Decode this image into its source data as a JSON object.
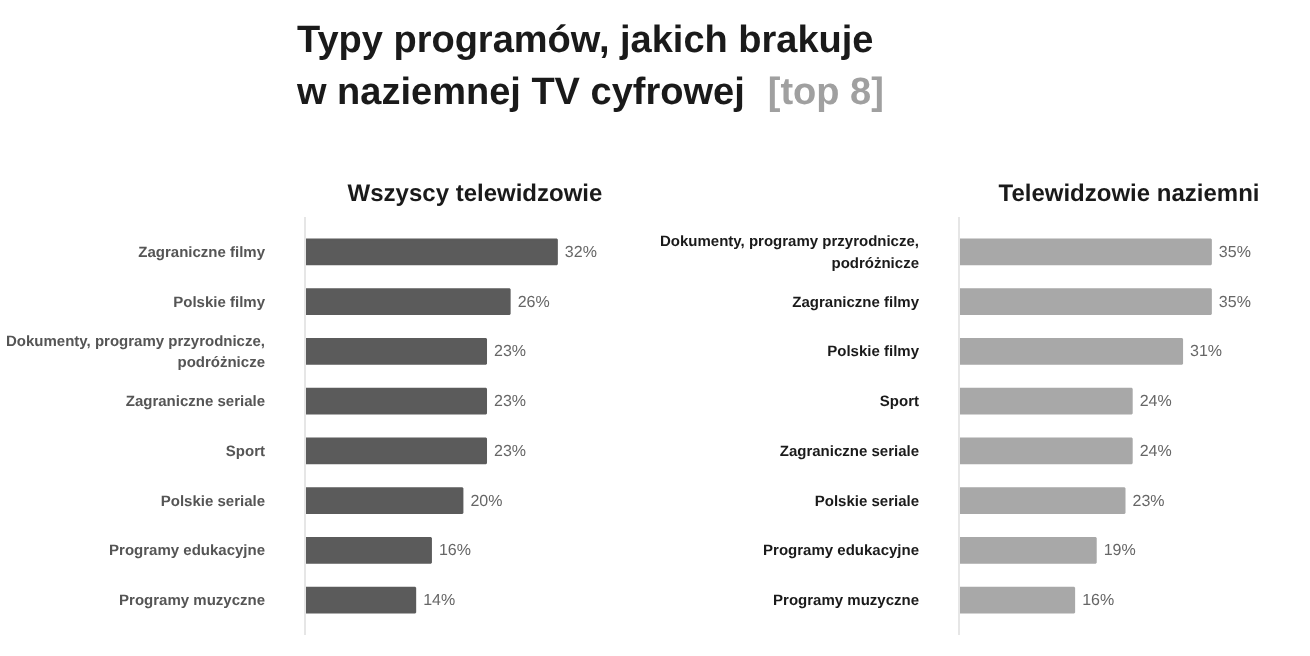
{
  "chart_data": [
    {
      "type": "other",
      "title": "Typy programów, jakich brakuje w naziemnej TV cyfrowej",
      "subtitle": "[top 8]"
    },
    {
      "type": "bar",
      "orientation": "horizontal",
      "title": "Wszyscy telewidzowie",
      "categories": [
        "Zagraniczne filmy",
        "Polskie filmy",
        "Dokumenty, programy przyrodnicze, podróżnicze",
        "Zagraniczne seriale",
        "Sport",
        "Polskie seriale",
        "Programy edukacyjne",
        "Programy muzyczne"
      ],
      "values": [
        32,
        26,
        23,
        23,
        23,
        20,
        16,
        14
      ],
      "value_labels": [
        "32%",
        "26%",
        "23%",
        "23%",
        "23%",
        "20%",
        "16%",
        "14%"
      ],
      "color": "#5b5b5b",
      "grid": false,
      "tick_labels": "y"
    },
    {
      "type": "bar",
      "orientation": "horizontal",
      "title": "Telewidzowie naziemni",
      "categories": [
        "Dokumenty, programy przyrodnicze, podróżnicze",
        "Zagraniczne filmy",
        "Polskie filmy",
        "Sport",
        "Zagraniczne seriale",
        "Polskie seriale",
        "Programy edukacyjne",
        "Programy muzyczne"
      ],
      "values": [
        35,
        35,
        31,
        24,
        24,
        23,
        19,
        16
      ],
      "value_labels": [
        "35%",
        "35%",
        "31%",
        "24%",
        "24%",
        "23%",
        "19%",
        "16%"
      ],
      "color": "#a8a8a8",
      "grid": false,
      "tick_labels": "y"
    }
  ]
}
